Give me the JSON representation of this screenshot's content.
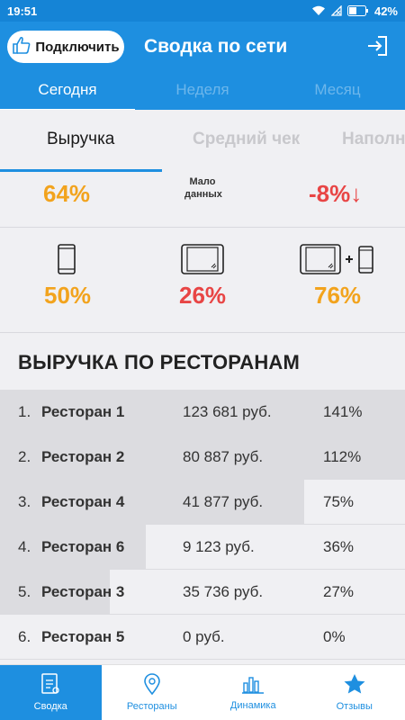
{
  "status": {
    "time": "19:51",
    "battery": "42%"
  },
  "header": {
    "connect_label": "Подключить",
    "title": "Сводка по сети"
  },
  "period_tabs": [
    {
      "label": "Сегодня",
      "active": true
    },
    {
      "label": "Неделя",
      "active": false
    },
    {
      "label": "Месяц",
      "active": false
    }
  ],
  "metric_tabs": [
    {
      "label": "Выручка",
      "active": true
    },
    {
      "label": "Средний чек",
      "active": false
    },
    {
      "label": "Наполня",
      "active": false
    }
  ],
  "metrics": {
    "revenue_change": "64%",
    "avg_check_note": "Мало данных",
    "fill_change": "-8%↓"
  },
  "devices": [
    {
      "name": "phone-icon",
      "value": "50%",
      "color": "#f2a31d"
    },
    {
      "name": "tablet-icon",
      "value": "26%",
      "color": "#e84545"
    },
    {
      "name": "tablet-plus-phone-icon",
      "value": "76%",
      "color": "#f2a31d"
    }
  ],
  "colors": {
    "orange": "#f2a31d",
    "red": "#e84545",
    "accent": "#1e8fe0"
  },
  "section_title": "ВЫРУЧКА ПО РЕСТОРАНАМ",
  "restaurants": [
    {
      "idx": "1.",
      "name": "Ресторан 1",
      "amount": "123 681 руб.",
      "pct": "141%",
      "share": 1.0
    },
    {
      "idx": "2.",
      "name": "Ресторан 2",
      "amount": "80 887 руб.",
      "pct": "112%",
      "share": 1.0
    },
    {
      "idx": "3.",
      "name": "Ресторан 4",
      "amount": "41 877 руб.",
      "pct": "75%",
      "share": 0.75
    },
    {
      "idx": "4.",
      "name": "Ресторан 6",
      "amount": "9 123 руб.",
      "pct": "36%",
      "share": 0.36
    },
    {
      "idx": "5.",
      "name": "Ресторан 3",
      "amount": "35 736 руб.",
      "pct": "27%",
      "share": 0.27
    },
    {
      "idx": "6.",
      "name": "Ресторан 5",
      "amount": "0 руб.",
      "pct": "0%",
      "share": 0.0
    }
  ],
  "bottom_nav": [
    {
      "label": "Сводка",
      "icon": "summary-icon",
      "active": true
    },
    {
      "label": "Рестораны",
      "icon": "location-pin-icon",
      "active": false
    },
    {
      "label": "Динамика",
      "icon": "bar-chart-icon",
      "active": false
    },
    {
      "label": "Отзывы",
      "icon": "star-icon",
      "active": false
    }
  ]
}
